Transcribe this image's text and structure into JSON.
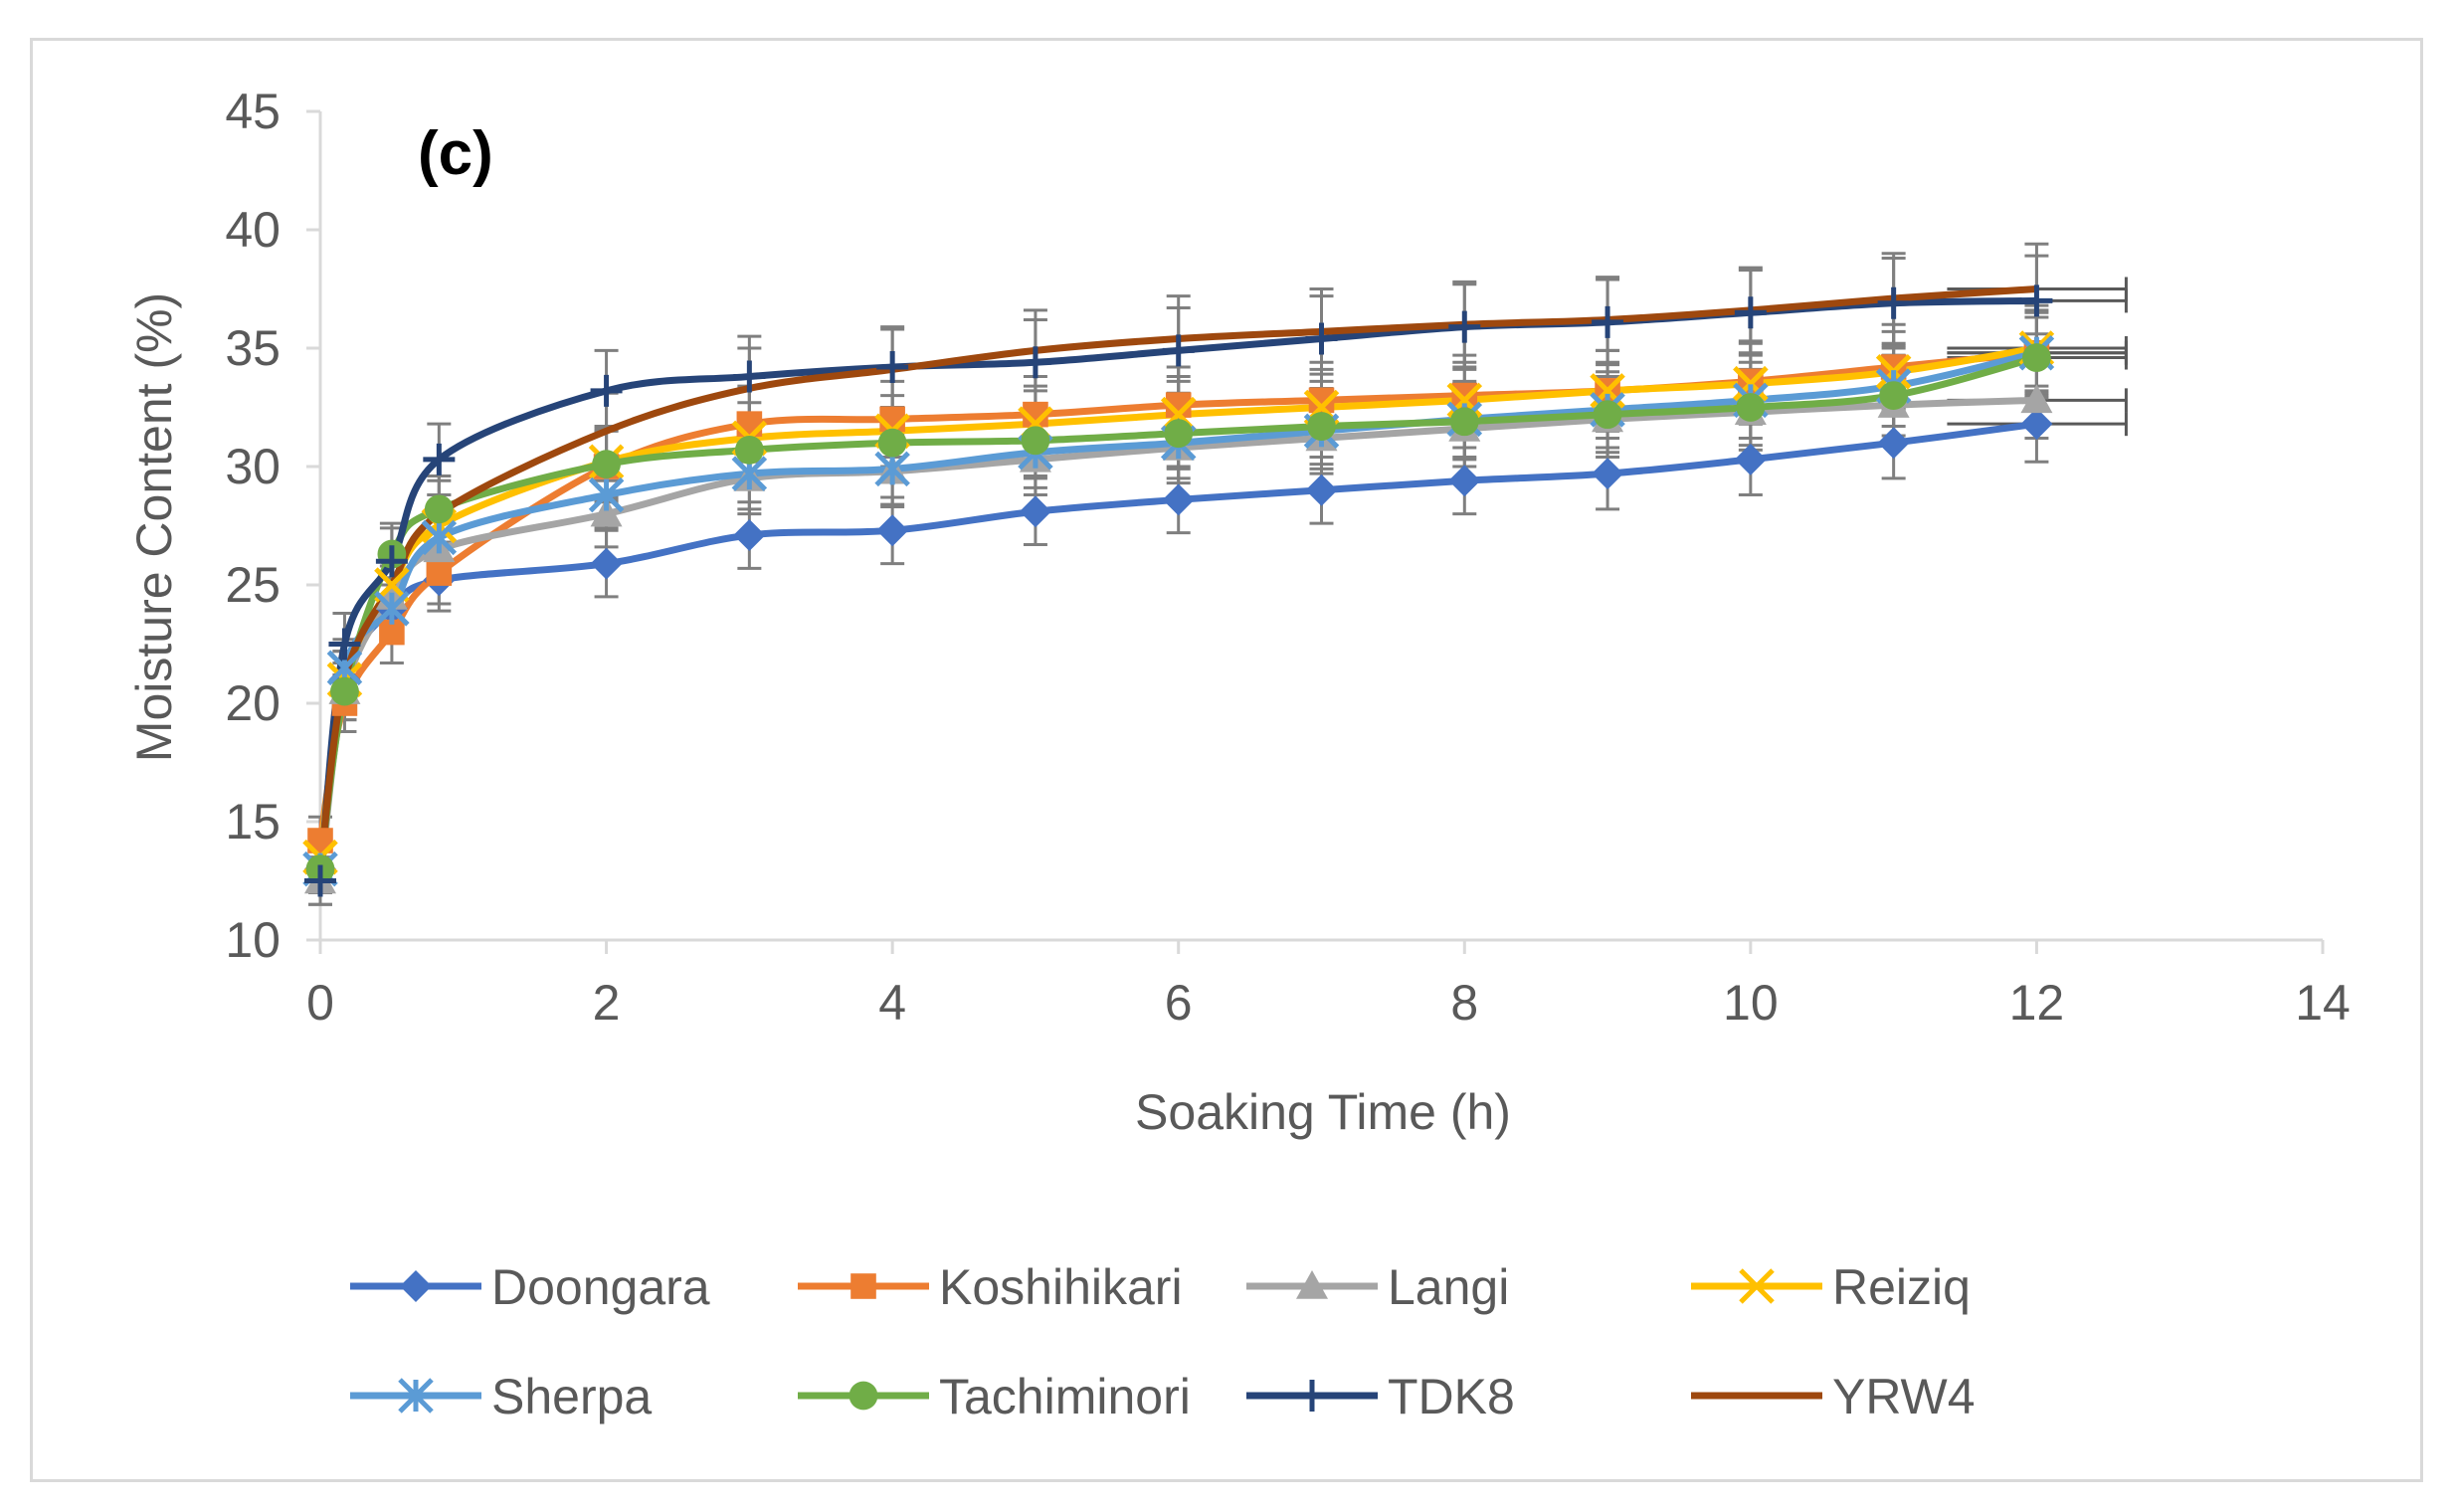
{
  "chart_data": {
    "type": "line",
    "title": "",
    "panel_label": "(c)",
    "xlabel": "Soaking Time (h)",
    "ylabel": "Moisture Content (%)",
    "xlim": [
      0,
      14
    ],
    "ylim": [
      10,
      45
    ],
    "xticks": [
      0,
      2,
      4,
      6,
      8,
      10,
      12,
      14
    ],
    "yticks": [
      10,
      15,
      20,
      25,
      30,
      35,
      40,
      45
    ],
    "grid": false,
    "legend_position": "bottom",
    "x": [
      0,
      0.17,
      0.5,
      0.83,
      2,
      3,
      4,
      5,
      6,
      7,
      8,
      9,
      10,
      11,
      12
    ],
    "series": [
      {
        "name": "Doongara",
        "color": "#4472C4",
        "marker": "diamond",
        "values": [
          13.0,
          21.0,
          24.0,
          25.2,
          25.9,
          27.1,
          27.3,
          28.1,
          28.6,
          29.0,
          29.4,
          29.7,
          30.3,
          31.0,
          31.8
        ],
        "err": [
          1.0,
          1.2,
          1.3,
          1.3,
          1.4,
          1.4,
          1.4,
          1.4,
          1.4,
          1.4,
          1.4,
          1.5,
          1.5,
          1.5,
          1.6
        ]
      },
      {
        "name": "Koshihikari",
        "color": "#ED7D31",
        "marker": "square",
        "values": [
          14.2,
          20.0,
          23.0,
          25.5,
          30.0,
          31.8,
          32.0,
          32.2,
          32.6,
          32.8,
          33.0,
          33.2,
          33.6,
          34.2,
          34.8
        ],
        "err": [
          1.0,
          1.2,
          1.3,
          1.3,
          1.5,
          1.6,
          1.6,
          1.6,
          1.6,
          1.6,
          1.7,
          1.7,
          1.7,
          1.8,
          1.8
        ]
      },
      {
        "name": "Langi",
        "color": "#A5A5A5",
        "marker": "triangle",
        "values": [
          12.5,
          20.5,
          24.5,
          26.5,
          28.0,
          29.5,
          29.8,
          30.3,
          30.8,
          31.2,
          31.6,
          32.0,
          32.3,
          32.6,
          32.8
        ],
        "err": [
          1.0,
          1.2,
          1.3,
          1.3,
          1.4,
          1.5,
          1.5,
          1.5,
          1.5,
          1.5,
          1.6,
          1.6,
          1.6,
          1.6,
          1.6
        ]
      },
      {
        "name": "Reiziq",
        "color": "#FFC000",
        "marker": "x",
        "values": [
          13.5,
          21.0,
          25.0,
          27.5,
          30.2,
          31.2,
          31.5,
          31.8,
          32.2,
          32.5,
          32.8,
          33.2,
          33.5,
          34.0,
          35.0
        ],
        "err": [
          1.0,
          1.2,
          1.3,
          1.3,
          1.5,
          1.5,
          1.5,
          1.6,
          1.6,
          1.6,
          1.6,
          1.7,
          1.7,
          1.7,
          1.8
        ]
      },
      {
        "name": "Sherpa",
        "color": "#5B9BD5",
        "marker": "star",
        "values": [
          13.0,
          21.5,
          24.0,
          27.0,
          28.8,
          29.7,
          29.9,
          30.6,
          31.0,
          31.5,
          32.0,
          32.4,
          32.8,
          33.4,
          34.8
        ],
        "err": [
          1.0,
          1.2,
          1.3,
          1.3,
          1.4,
          1.5,
          1.5,
          1.5,
          1.5,
          1.6,
          1.6,
          1.6,
          1.6,
          1.7,
          1.7
        ]
      },
      {
        "name": "Tachiminori",
        "color": "#70AD47",
        "marker": "circle",
        "values": [
          13.0,
          20.5,
          26.3,
          28.2,
          30.1,
          30.7,
          31.0,
          31.1,
          31.4,
          31.7,
          31.9,
          32.2,
          32.5,
          33.0,
          34.6
        ],
        "err": [
          1.0,
          1.2,
          1.3,
          1.4,
          1.5,
          1.5,
          1.5,
          1.5,
          1.5,
          1.6,
          1.6,
          1.6,
          1.6,
          1.7,
          1.7
        ]
      },
      {
        "name": "TDK8",
        "color": "#264478",
        "marker": "plus",
        "values": [
          12.5,
          22.5,
          26.0,
          30.3,
          33.2,
          33.8,
          34.2,
          34.4,
          34.9,
          35.4,
          35.9,
          36.1,
          36.5,
          36.9,
          37.0
        ],
        "err": [
          1.0,
          1.3,
          1.4,
          1.5,
          1.7,
          1.7,
          1.7,
          1.8,
          1.8,
          1.8,
          1.8,
          1.8,
          1.8,
          1.9,
          1.9
        ]
      },
      {
        "name": "YRW4",
        "color": "#9E480E",
        "marker": "none",
        "values": [
          13.0,
          21.0,
          25.0,
          28.0,
          31.5,
          33.3,
          34.1,
          34.9,
          35.4,
          35.7,
          36.0,
          36.2,
          36.6,
          37.1,
          37.5
        ],
        "err": [
          1.0,
          1.2,
          1.3,
          1.4,
          1.6,
          1.7,
          1.7,
          1.7,
          1.8,
          1.8,
          1.8,
          1.8,
          1.8,
          1.9,
          1.9
        ]
      }
    ]
  }
}
